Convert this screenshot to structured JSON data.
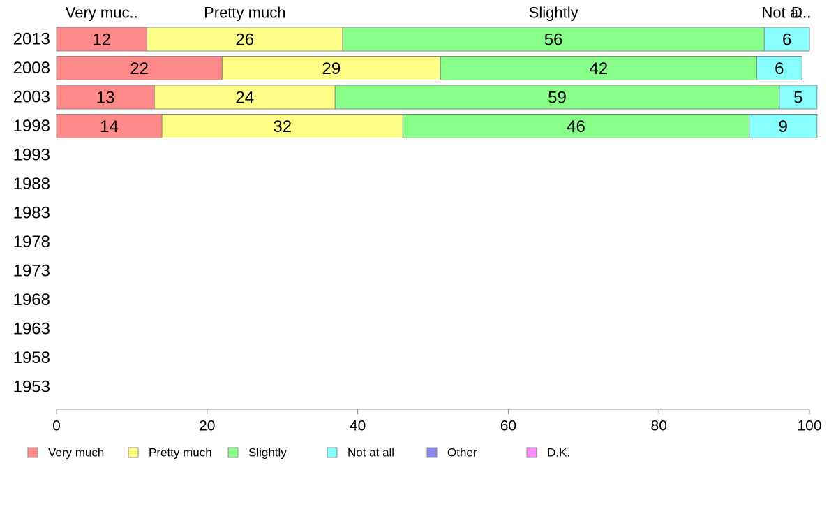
{
  "chart_data": {
    "type": "bar",
    "orientation": "horizontal",
    "stacked": true,
    "categories": [
      "2013",
      "2008",
      "2003",
      "1998",
      "1993",
      "1988",
      "1983",
      "1978",
      "1973",
      "1968",
      "1963",
      "1958",
      "1953"
    ],
    "series": [
      {
        "name": "Very much",
        "color": "#FF8888",
        "values": [
          12,
          22,
          13,
          14,
          null,
          null,
          null,
          null,
          null,
          null,
          null,
          null,
          null
        ]
      },
      {
        "name": "Pretty much",
        "color": "#FFFF88",
        "values": [
          26,
          29,
          24,
          32,
          null,
          null,
          null,
          null,
          null,
          null,
          null,
          null,
          null
        ]
      },
      {
        "name": "Slightly",
        "color": "#88FF88",
        "values": [
          56,
          42,
          59,
          46,
          null,
          null,
          null,
          null,
          null,
          null,
          null,
          null,
          null
        ]
      },
      {
        "name": "Not at all",
        "color": "#88FFFF",
        "values": [
          6,
          6,
          5,
          9,
          null,
          null,
          null,
          null,
          null,
          null,
          null,
          null,
          null
        ]
      },
      {
        "name": "Other",
        "color": "#8888EE",
        "values": [
          null,
          null,
          null,
          null,
          null,
          null,
          null,
          null,
          null,
          null,
          null,
          null,
          null
        ]
      },
      {
        "name": "D.K.",
        "color": "#FF88FF",
        "values": [
          null,
          null,
          null,
          null,
          null,
          null,
          null,
          null,
          null,
          null,
          null,
          null,
          null
        ]
      }
    ],
    "top_labels": [
      "Very muc..",
      "Pretty much",
      "Slightly",
      "Not at..",
      "D.."
    ],
    "x_ticks": [
      0,
      20,
      40,
      60,
      80,
      100
    ],
    "xlim": [
      0,
      100
    ],
    "legend_position": "bottom",
    "grid": false
  }
}
